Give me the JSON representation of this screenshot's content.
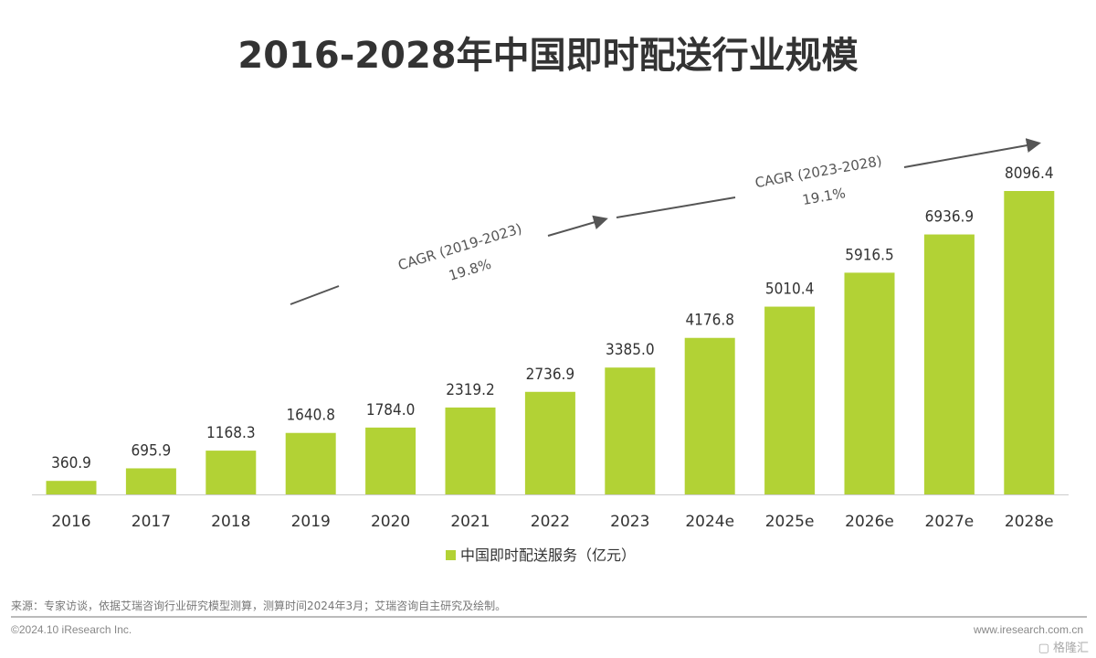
{
  "chart_data": {
    "type": "bar",
    "title": "2016-2028年中国即时配送行业规模",
    "categories": [
      "2016",
      "2017",
      "2018",
      "2019",
      "2020",
      "2021",
      "2022",
      "2023",
      "2024e",
      "2025e",
      "2026e",
      "2027e",
      "2028e"
    ],
    "series": [
      {
        "name": "中国即时配送服务（亿元）",
        "values": [
          360.9,
          695.9,
          1168.3,
          1640.8,
          1784.0,
          2319.2,
          2736.9,
          3385.0,
          4176.8,
          5010.4,
          5916.5,
          6936.9,
          8096.4
        ],
        "color": "#b2d235"
      }
    ],
    "annotations": [
      {
        "label": "CAGR (2019-2023)",
        "value": "19.8%"
      },
      {
        "label": "CAGR (2023-2028)",
        "value": "19.1%"
      }
    ],
    "ylim": [
      0,
      8096.4
    ],
    "grid": false,
    "legend": "bottom"
  },
  "footer": {
    "source": "来源：专家访谈，依据艾瑞咨询行业研究模型测算，测算时间2024年3月；艾瑞咨询自主研究及绘制。",
    "copyright": "©2024.10 iResearch Inc.",
    "website": "www.iresearch.com.cn",
    "watermark": "格隆汇"
  }
}
